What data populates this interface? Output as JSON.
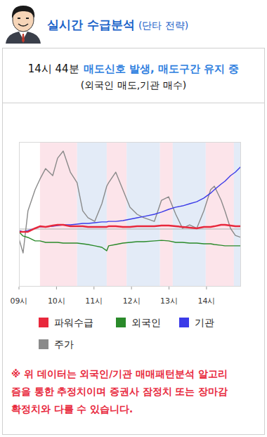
{
  "header": {
    "title": "실시간 수급분석",
    "subtitle": "(단타 전략)"
  },
  "signal": {
    "time": "14시 44분",
    "message": "매도신호 발생, 매도구간 유지 중",
    "detail": "(외국인 매도,기관 매수)"
  },
  "chart_data": {
    "type": "line",
    "x": [
      9.0,
      9.11,
      9.24,
      9.43,
      9.56,
      9.71,
      9.9,
      10.03,
      10.18,
      10.37,
      10.55,
      10.7,
      10.84,
      11.02,
      11.21,
      11.34,
      11.39,
      11.58,
      11.77,
      11.96,
      12.15,
      12.33,
      12.61,
      12.8,
      12.99,
      13.18,
      13.36,
      13.55,
      13.74,
      13.93,
      14.11,
      14.21,
      14.39,
      14.49,
      14.64,
      14.77,
      14.92
    ],
    "series": [
      {
        "name": "파워수급",
        "color": "#e8283c",
        "values": [
          37.9,
          37.9,
          37.9,
          40.3,
          41.7,
          41.3,
          42.2,
          42.7,
          42.7,
          41.7,
          41.7,
          41.7,
          41.3,
          41.3,
          41.3,
          41.3,
          41.7,
          41.7,
          41.3,
          41.3,
          41.7,
          41.7,
          41.7,
          42.2,
          42.2,
          41.7,
          41.3,
          40.8,
          40.3,
          41.3,
          41.3,
          41.7,
          42.7,
          42.7,
          42.2,
          41.7,
          41.7
        ]
      },
      {
        "name": "외국인",
        "color": "#2a8a2a",
        "values": [
          37.9,
          35.0,
          34.0,
          31.6,
          31.6,
          30.6,
          30.6,
          30.6,
          30.1,
          30.1,
          30.1,
          29.6,
          29.1,
          28.2,
          27.2,
          24.8,
          28.2,
          29.1,
          30.1,
          30.6,
          31.1,
          31.1,
          31.6,
          32.0,
          31.6,
          30.6,
          30.6,
          30.1,
          30.1,
          29.6,
          29.6,
          29.1,
          28.6,
          28.2,
          28.2,
          28.2,
          28.2
        ]
      },
      {
        "name": "기관",
        "color": "#3b3be8",
        "values": [
          38.8,
          37.9,
          38.8,
          40.3,
          41.3,
          41.3,
          41.7,
          42.2,
          42.7,
          42.7,
          43.2,
          43.7,
          43.7,
          44.2,
          44.7,
          44.7,
          45.1,
          45.1,
          45.6,
          46.6,
          47.6,
          48.5,
          50.0,
          51.5,
          53.4,
          54.9,
          55.8,
          57.3,
          58.7,
          61.2,
          64.6,
          67.0,
          70.9,
          72.8,
          76.7,
          79.1,
          83.0
        ]
      },
      {
        "name": "주가",
        "color": "#8a8a8a",
        "values": [
          33.0,
          23.3,
          52.4,
          67.0,
          74.3,
          81.6,
          76.7,
          88.8,
          93.7,
          79.1,
          71.8,
          52.4,
          47.6,
          45.1,
          57.3,
          69.4,
          71.8,
          79.1,
          67.0,
          54.9,
          50.0,
          47.6,
          45.1,
          59.7,
          62.1,
          50.0,
          40.3,
          42.7,
          40.3,
          52.4,
          67.0,
          69.4,
          59.7,
          52.4,
          40.3,
          35.4,
          34.0
        ]
      }
    ],
    "xlim": [
      9,
      14.92
    ],
    "xticks": [
      {
        "value": 9,
        "label": "09시"
      },
      {
        "value": 10,
        "label": "10시"
      },
      {
        "value": 11,
        "label": "11시"
      },
      {
        "value": 12,
        "label": "12시"
      },
      {
        "value": 13,
        "label": "13시"
      },
      {
        "value": 14,
        "label": "14시"
      }
    ],
    "ylim": [
      0,
      100
    ],
    "tick_labels": "x",
    "baseline": 39.8,
    "zones": [
      {
        "start": 9.56,
        "end": 10.55,
        "color": "#fce4ea"
      },
      {
        "start": 10.55,
        "end": 11.34,
        "color": "#e3ebf7"
      },
      {
        "start": 11.34,
        "end": 11.87,
        "color": "#fce4ea"
      },
      {
        "start": 11.87,
        "end": 12.76,
        "color": "#e3ebf7"
      },
      {
        "start": 12.76,
        "end": 13.1,
        "color": "#fce4ea"
      },
      {
        "start": 13.1,
        "end": 13.98,
        "color": "#e3ebf7"
      },
      {
        "start": 13.98,
        "end": 14.73,
        "color": "#fce4ea"
      },
      {
        "start": 14.73,
        "end": 14.92,
        "color": "#e3ebf7"
      }
    ]
  },
  "footnote": [
    "※ 위 데이터는 외국인/기관 매매패턴분석 알고리",
    "즘을 통한 추정치이며 증권사 잠정치 또는 장마감",
    "확정치와 다를 수 있습니다."
  ]
}
